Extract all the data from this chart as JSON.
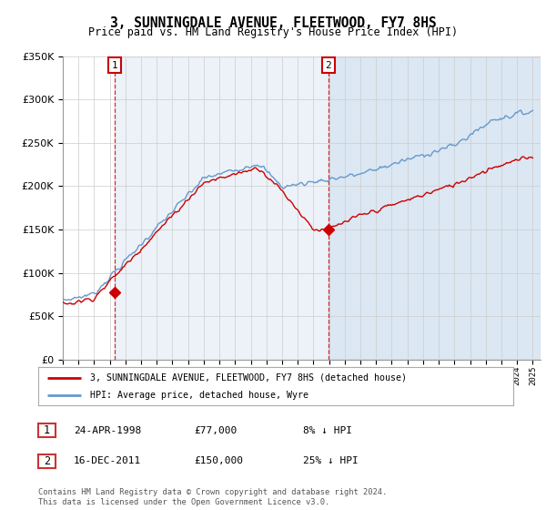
{
  "title": "3, SUNNINGDALE AVENUE, FLEETWOOD, FY7 8HS",
  "subtitle": "Price paid vs. HM Land Registry's House Price Index (HPI)",
  "legend_property": "3, SUNNINGDALE AVENUE, FLEETWOOD, FY7 8HS (detached house)",
  "legend_hpi": "HPI: Average price, detached house, Wyre",
  "sale1_label": "1",
  "sale1_date": "24-APR-1998",
  "sale1_price": "£77,000",
  "sale1_hpi": "8% ↓ HPI",
  "sale1_year": 1998.3,
  "sale1_price_val": 77000,
  "sale2_label": "2",
  "sale2_date": "16-DEC-2011",
  "sale2_price": "£150,000",
  "sale2_hpi": "25% ↓ HPI",
  "sale2_year": 2011.96,
  "sale2_price_val": 150000,
  "ylim": [
    0,
    350000
  ],
  "xlim_start": 1995.0,
  "xlim_end": 2025.5,
  "property_color": "#cc0000",
  "hpi_color": "#6699cc",
  "shade_color": "#ddeeff",
  "background_color": "#ffffff",
  "grid_color": "#cccccc",
  "footer": "Contains HM Land Registry data © Crown copyright and database right 2024.\nThis data is licensed under the Open Government Licence v3.0."
}
